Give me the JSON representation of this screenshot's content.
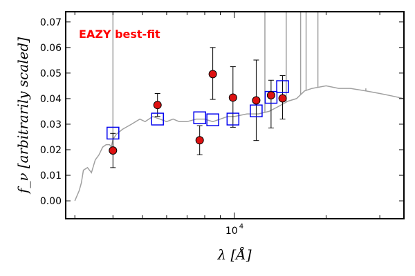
{
  "chart_data": {
    "type": "scatter",
    "title": "",
    "xlabel": "λ [Å]",
    "ylabel": "f_ν [arbitrarily scaled]",
    "x_scale": "log",
    "xlim": [
      2800,
      36000
    ],
    "ylim": [
      -0.007,
      0.074
    ],
    "x_ticks": [
      {
        "value": 10000,
        "label": "10",
        "exponent": "4"
      }
    ],
    "x_minor_ticks": [
      3000,
      4000,
      5000,
      6000,
      7000,
      8000,
      9000,
      20000,
      30000
    ],
    "y_ticks": [
      {
        "value": 0.0,
        "label": "0.00"
      },
      {
        "value": 0.01,
        "label": "0.01"
      },
      {
        "value": 0.02,
        "label": "0.02"
      },
      {
        "value": 0.03,
        "label": "0.03"
      },
      {
        "value": 0.04,
        "label": "0.04"
      },
      {
        "value": 0.05,
        "label": "0.05"
      },
      {
        "value": 0.06,
        "label": "0.06"
      },
      {
        "value": 0.07,
        "label": "0.07"
      }
    ],
    "annotation": {
      "text": "EAZY best-fit",
      "color": "#ff0000",
      "position": "top-left"
    },
    "colors": {
      "template": "#a0a0a0",
      "observed": "#dd1111",
      "model": "#0000ee",
      "errorbar": "#000000"
    },
    "series": [
      {
        "kind": "line",
        "x": [
          3000,
          3100,
          3150,
          3200,
          3300,
          3400,
          3500,
          3600,
          3700,
          3800,
          3900,
          3950,
          4000,
          4050,
          4100,
          4300,
          4600,
          4900,
          5100,
          5400,
          5700,
          6000,
          6300,
          6600,
          7000,
          7500,
          8000,
          8500,
          9000,
          9500,
          10000,
          11000,
          12000,
          13000,
          14000,
          15000,
          16000,
          17000,
          18000,
          20000,
          22000,
          24000,
          27000,
          30000,
          33000,
          36000
        ],
        "y": [
          0.0,
          0.004,
          0.007,
          0.012,
          0.013,
          0.011,
          0.016,
          0.018,
          0.021,
          0.022,
          0.022,
          0.021,
          0.024,
          0.025,
          0.026,
          0.028,
          0.03,
          0.032,
          0.031,
          0.033,
          0.032,
          0.031,
          0.032,
          0.031,
          0.031,
          0.032,
          0.032,
          0.031,
          0.032,
          0.033,
          0.033,
          0.034,
          0.034,
          0.035,
          0.037,
          0.039,
          0.04,
          0.043,
          0.044,
          0.045,
          0.044,
          0.044,
          0.043,
          0.042,
          0.041,
          0.04
        ]
      },
      {
        "kind": "emission_lines",
        "x": [
          4000,
          12600,
          14800,
          16500,
          17200,
          18800,
          27000
        ],
        "y": [
          0.074,
          0.074,
          0.074,
          0.074,
          0.074,
          0.074,
          0.044
        ]
      },
      {
        "kind": "model_photometry",
        "x": [
          4000,
          5600,
          7700,
          8500,
          9900,
          11800,
          13200,
          14400
        ],
        "y": [
          0.0265,
          0.032,
          0.0325,
          0.0317,
          0.032,
          0.0352,
          0.0405,
          0.0447
        ]
      },
      {
        "kind": "observed_photometry",
        "x": [
          4000,
          5600,
          7700,
          8500,
          9900,
          11800,
          13200,
          14400
        ],
        "y": [
          0.0197,
          0.0375,
          0.0237,
          0.0496,
          0.0404,
          0.0393,
          0.0413,
          0.0401
        ],
        "yerr_low": [
          0.0067,
          0.0045,
          0.0057,
          0.0099,
          0.0116,
          0.0157,
          0.0128,
          0.0081
        ],
        "yerr_high": [
          0.0067,
          0.0045,
          0.0057,
          0.0104,
          0.0121,
          0.0158,
          0.0059,
          0.0089
        ]
      }
    ]
  }
}
